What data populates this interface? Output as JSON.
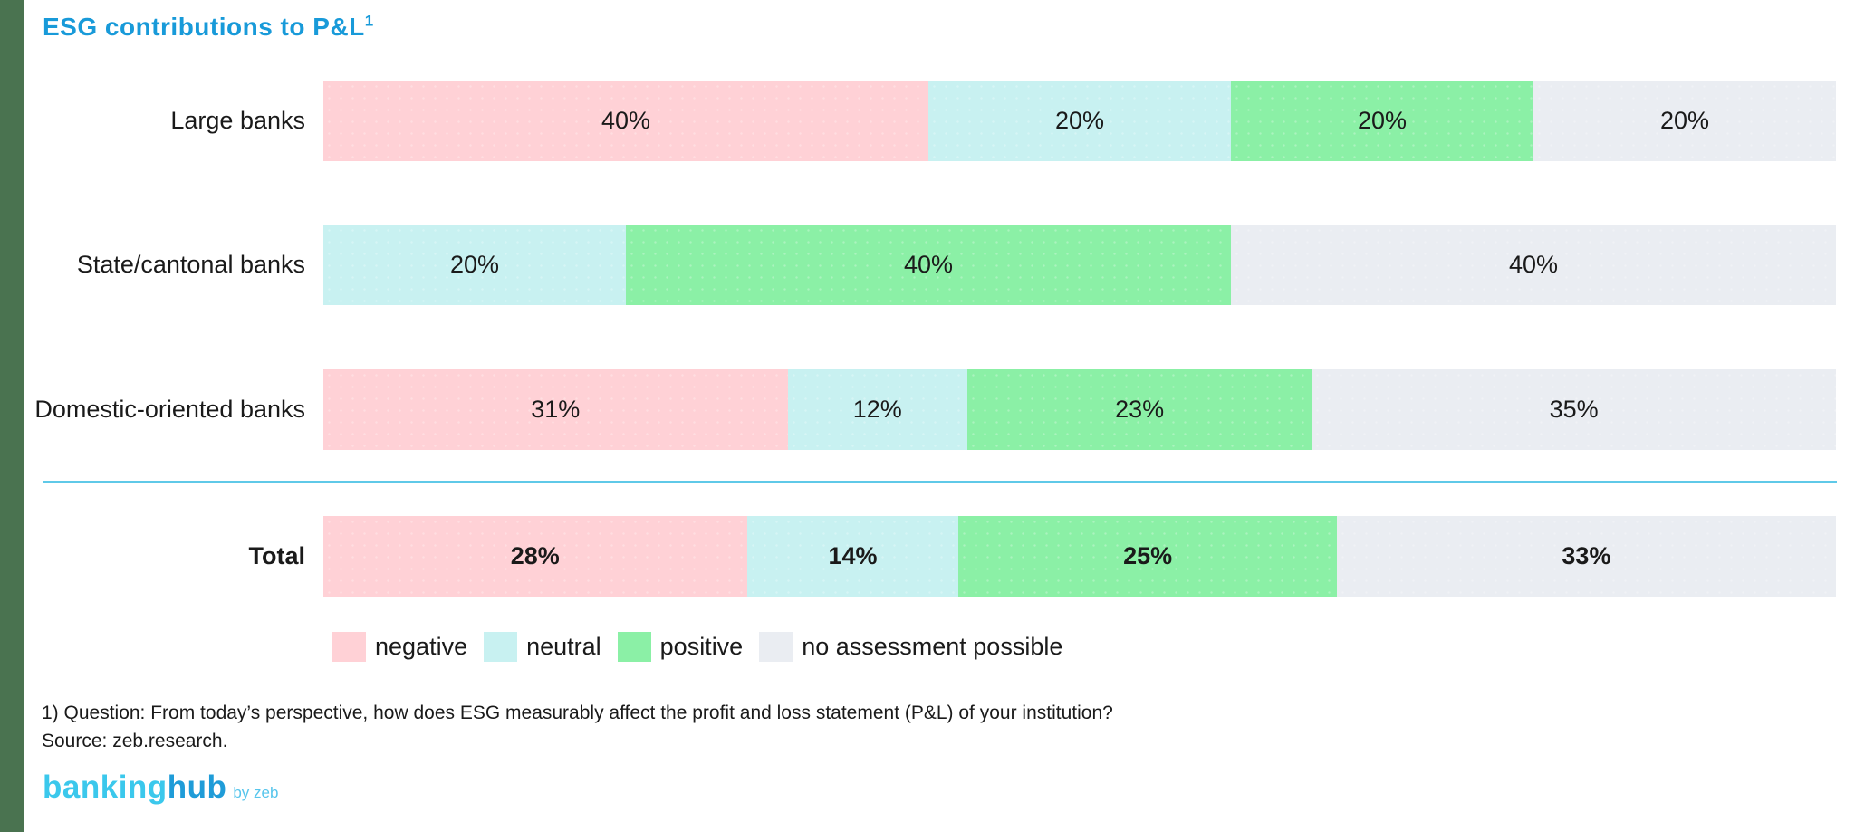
{
  "page": {
    "title": "ESG contributions to P&L",
    "title_superscript": "1",
    "title_color": "#189ad9"
  },
  "chart_data": {
    "type": "bar",
    "orientation": "horizontal-stacked",
    "unit": "%",
    "title": "ESG contributions to P&L",
    "categories": [
      "Large banks",
      "State/cantonal banks",
      "Domestic-oriented banks",
      "Total"
    ],
    "series": [
      {
        "name": "negative",
        "color": "#ffd1d6",
        "values": [
          40,
          0,
          31,
          28
        ]
      },
      {
        "name": "neutral",
        "color": "#c8f1f1",
        "values": [
          20,
          20,
          12,
          14
        ]
      },
      {
        "name": "positive",
        "color": "#8bf0a6",
        "values": [
          20,
          40,
          23,
          25
        ]
      },
      {
        "name": "no assessment possible",
        "color": "#eaedf2",
        "values": [
          20,
          40,
          35,
          33
        ]
      }
    ],
    "emphasized_categories": [
      "Total"
    ],
    "xlim": [
      0,
      100
    ],
    "grid": false,
    "legend_position": "bottom",
    "value_label_format": "{value}%"
  },
  "divider_color": "#5fc9e8",
  "footnote": {
    "line1": "1) Question: From today’s perspective, how does ESG measurably affect the profit and loss statement (P&L) of your institution?",
    "line2": "Source: zeb.research."
  },
  "logo": {
    "part1": "banking",
    "part2": "hub",
    "byline": "by zeb"
  }
}
